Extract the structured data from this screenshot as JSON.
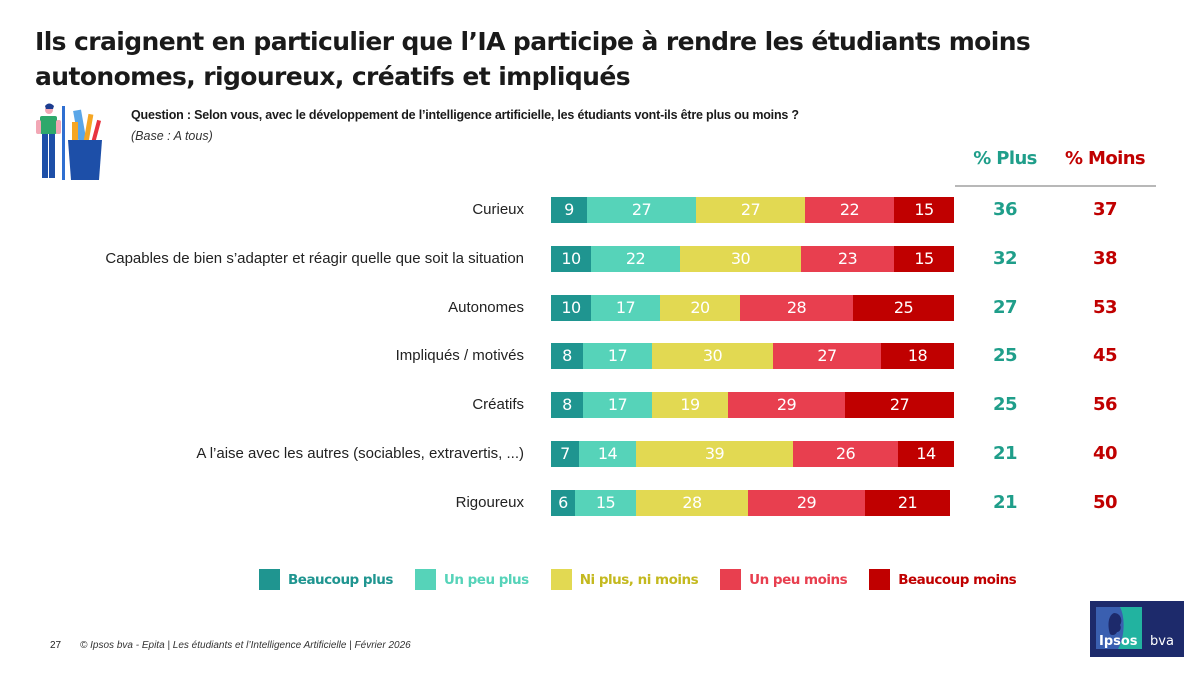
{
  "title": {
    "line1": "Ils craignent en particulier que l’IA participe à rendre les étudiants moins",
    "line2": "autonomes, rigoureux, créatifs et impliqués"
  },
  "question": "Question : Selon vous, avec le développement de l’intelligence artificielle, les étudiants vont-ils être plus ou moins ?",
  "base": "(Base : A tous)",
  "columns": {
    "plus": "% Plus",
    "moins": "% Moins"
  },
  "colors": {
    "beaucoup_plus": "#1f9590",
    "un_peu_plus": "#56d3b9",
    "ni_plus_ni_moins": "#e2d952",
    "un_peu_moins": "#e83f4f",
    "beaucoup_moins": "#c00000",
    "plus_text": "#1f9e8a",
    "moins_text": "#c00000"
  },
  "chart_data": {
    "type": "bar",
    "orientation": "horizontal-stacked-100",
    "title": "Ils craignent en particulier que l’IA participe à rendre les étudiants moins autonomes, rigoureux, créatifs et impliqués",
    "categories": [
      "Curieux",
      "Capables de bien s’adapter et réagir quelle que soit la situation",
      "Autonomes",
      "Impliqués / motivés",
      "Créatifs",
      "A l’aise avec les autres (sociables, extravertis, ...)",
      "Rigoureux"
    ],
    "series": [
      {
        "name": "Beaucoup plus",
        "values": [
          9,
          10,
          10,
          8,
          8,
          7,
          6
        ]
      },
      {
        "name": "Un peu plus",
        "values": [
          27,
          22,
          17,
          17,
          17,
          14,
          15
        ]
      },
      {
        "name": "Ni plus, ni moins",
        "values": [
          27,
          30,
          20,
          30,
          19,
          39,
          28
        ]
      },
      {
        "name": "Un peu moins",
        "values": [
          22,
          23,
          28,
          27,
          29,
          26,
          29
        ]
      },
      {
        "name": "Beaucoup moins",
        "values": [
          15,
          15,
          25,
          18,
          27,
          14,
          21
        ]
      }
    ],
    "pct_plus": [
      36,
      32,
      27,
      25,
      25,
      21,
      21
    ],
    "pct_moins": [
      37,
      38,
      53,
      45,
      56,
      40,
      50
    ],
    "xlim": [
      0,
      100
    ],
    "legend_position": "bottom",
    "grid": false
  },
  "legend": [
    "Beaucoup plus",
    "Un peu plus",
    "Ni plus, ni moins",
    "Un peu moins",
    "Beaucoup moins"
  ],
  "footer": {
    "page": "27",
    "text": "© Ipsos bva - Epita | Les étudiants et l’Intelligence Artificielle | Février 2026"
  },
  "logo": {
    "brand": "Ipsos",
    "sub": "bva"
  }
}
